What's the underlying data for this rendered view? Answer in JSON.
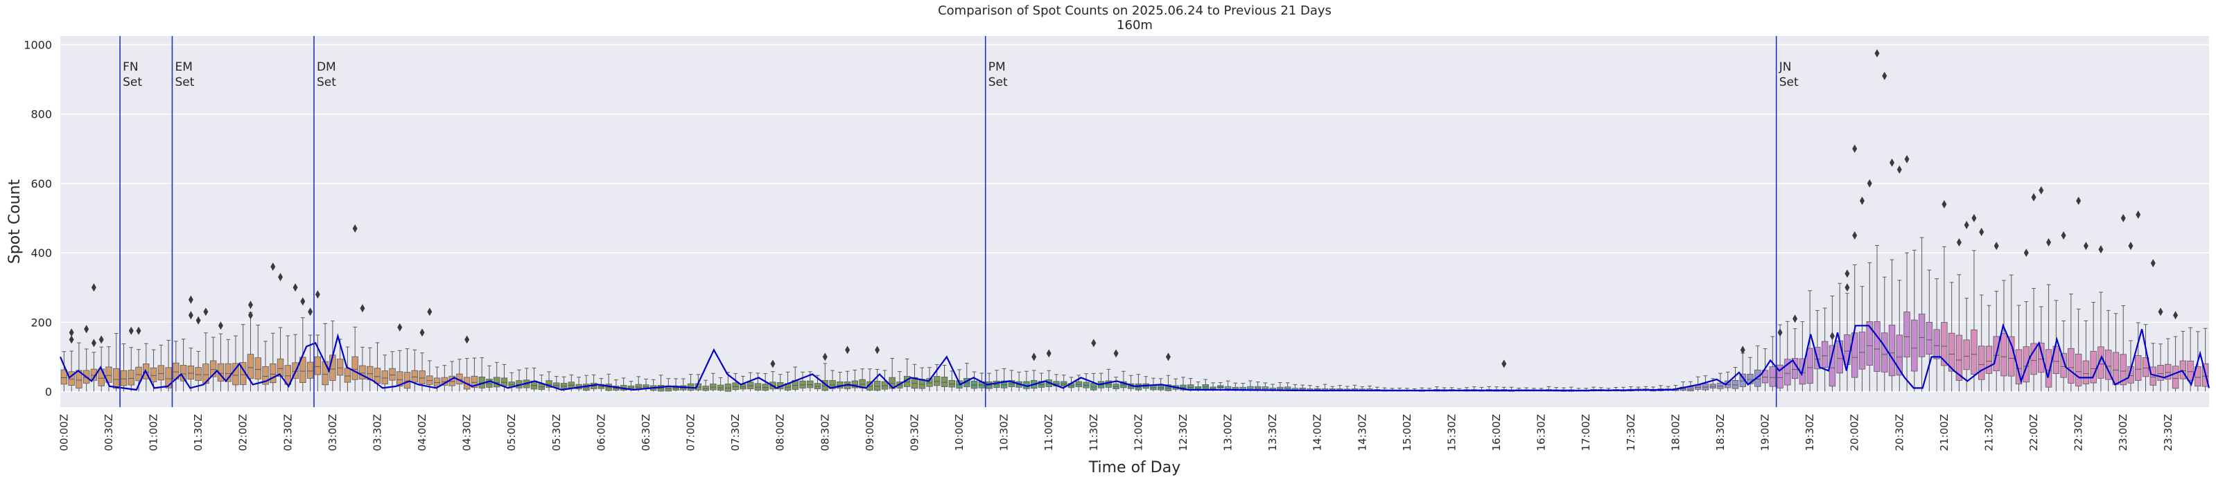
{
  "chart_data": {
    "type": "box",
    "title": "Comparison of Spot Counts on 2025.06.24 to Previous 21 Days",
    "subtitle": "160m",
    "xlabel": "Time of Day",
    "ylabel": "Spot Count",
    "ylim": [
      -45,
      1025
    ],
    "yticks": [
      0,
      200,
      400,
      600,
      800,
      1000
    ],
    "grid": true,
    "slots_per_day": 288,
    "slot_minutes": 5,
    "xtick_labels": [
      "00:00Z",
      "00:30Z",
      "01:00Z",
      "01:30Z",
      "02:00Z",
      "02:30Z",
      "03:00Z",
      "03:30Z",
      "04:00Z",
      "04:30Z",
      "05:00Z",
      "05:30Z",
      "06:00Z",
      "06:30Z",
      "07:00Z",
      "07:30Z",
      "08:00Z",
      "08:30Z",
      "09:00Z",
      "09:30Z",
      "10:00Z",
      "10:30Z",
      "11:00Z",
      "11:30Z",
      "12:00Z",
      "12:30Z",
      "13:00Z",
      "13:30Z",
      "14:00Z",
      "14:30Z",
      "15:00Z",
      "15:30Z",
      "16:00Z",
      "16:30Z",
      "17:00Z",
      "17:30Z",
      "18:00Z",
      "18:30Z",
      "19:00Z",
      "19:30Z",
      "20:00Z",
      "20:30Z",
      "21:00Z",
      "21:30Z",
      "22:00Z",
      "22:30Z",
      "23:00Z",
      "23:30Z"
    ],
    "annotations": [
      {
        "label": "FN\nSet",
        "time": "00:40Z"
      },
      {
        "label": "EM\nSet",
        "time": "01:15Z"
      },
      {
        "label": "DM\nSet",
        "time": "02:50Z"
      },
      {
        "label": "PM\nSet",
        "time": "10:20Z"
      },
      {
        "label": "JN\nSet",
        "time": "19:10Z"
      }
    ],
    "box_profile": {
      "time_hours": [
        0,
        0.5,
        1,
        2,
        2.5,
        3,
        3.5,
        4,
        5,
        6,
        7,
        8,
        9,
        10,
        10.5,
        11,
        12,
        13,
        14,
        15,
        16,
        17,
        18,
        18.5,
        19,
        19.5,
        20,
        20.5,
        21,
        21.5,
        22,
        22.5,
        23,
        23.5,
        24
      ],
      "median": [
        40,
        45,
        45,
        55,
        60,
        60,
        50,
        35,
        20,
        12,
        10,
        15,
        20,
        25,
        20,
        20,
        15,
        10,
        5,
        3,
        3,
        3,
        5,
        15,
        40,
        70,
        110,
        130,
        120,
        100,
        80,
        70,
        60,
        50,
        45
      ],
      "iqr": [
        40,
        45,
        45,
        55,
        60,
        60,
        50,
        35,
        20,
        15,
        15,
        20,
        25,
        25,
        20,
        18,
        15,
        10,
        6,
        4,
        4,
        4,
        6,
        18,
        45,
        80,
        120,
        140,
        110,
        100,
        90,
        80,
        70,
        60,
        50
      ]
    },
    "box_colors": [
      {
        "from": "00:00Z",
        "to": "04:40Z",
        "color": "#d09a6f"
      },
      {
        "from": "04:40Z",
        "to": "10:00Z",
        "color": "#7d9a5a"
      },
      {
        "from": "10:00Z",
        "to": "13:00Z",
        "color": "#5e9e73"
      },
      {
        "from": "13:00Z",
        "to": "16:30Z",
        "color": "#7aa9b6"
      },
      {
        "from": "16:30Z",
        "to": "19:00Z",
        "color": "#9a95c8"
      },
      {
        "from": "19:00Z",
        "to": "21:00Z",
        "color": "#c48bcf"
      },
      {
        "from": "21:00Z",
        "to": "24:00Z",
        "color": "#d78ebc"
      }
    ],
    "outliers": [
      {
        "time": "00:05Z",
        "value": 150
      },
      {
        "time": "00:05Z",
        "value": 170
      },
      {
        "time": "00:15Z",
        "value": 180
      },
      {
        "time": "00:20Z",
        "value": 300
      },
      {
        "time": "00:20Z",
        "value": 140
      },
      {
        "time": "00:25Z",
        "value": 150
      },
      {
        "time": "00:45Z",
        "value": 175
      },
      {
        "time": "00:50Z",
        "value": 175
      },
      {
        "time": "01:25Z",
        "value": 265
      },
      {
        "time": "01:25Z",
        "value": 220
      },
      {
        "time": "01:30Z",
        "value": 205
      },
      {
        "time": "01:35Z",
        "value": 230
      },
      {
        "time": "01:45Z",
        "value": 190
      },
      {
        "time": "02:05Z",
        "value": 250
      },
      {
        "time": "02:05Z",
        "value": 220
      },
      {
        "time": "02:20Z",
        "value": 360
      },
      {
        "time": "02:25Z",
        "value": 330
      },
      {
        "time": "02:35Z",
        "value": 300
      },
      {
        "time": "02:40Z",
        "value": 260
      },
      {
        "time": "02:45Z",
        "value": 230
      },
      {
        "time": "02:50Z",
        "value": 280
      },
      {
        "time": "03:15Z",
        "value": 470
      },
      {
        "time": "03:20Z",
        "value": 240
      },
      {
        "time": "03:45Z",
        "value": 185
      },
      {
        "time": "04:00Z",
        "value": 170
      },
      {
        "time": "04:05Z",
        "value": 230
      },
      {
        "time": "04:30Z",
        "value": 150
      },
      {
        "time": "07:55Z",
        "value": 80
      },
      {
        "time": "08:30Z",
        "value": 100
      },
      {
        "time": "08:45Z",
        "value": 120
      },
      {
        "time": "09:05Z",
        "value": 120
      },
      {
        "time": "10:50Z",
        "value": 100
      },
      {
        "time": "11:00Z",
        "value": 110
      },
      {
        "time": "11:30Z",
        "value": 140
      },
      {
        "time": "11:45Z",
        "value": 110
      },
      {
        "time": "12:20Z",
        "value": 100
      },
      {
        "time": "16:05Z",
        "value": 80
      },
      {
        "time": "18:45Z",
        "value": 120
      },
      {
        "time": "19:10Z",
        "value": 170
      },
      {
        "time": "19:20Z",
        "value": 210
      },
      {
        "time": "19:45Z",
        "value": 160
      },
      {
        "time": "19:55Z",
        "value": 300
      },
      {
        "time": "19:55Z",
        "value": 340
      },
      {
        "time": "20:00Z",
        "value": 450
      },
      {
        "time": "20:00Z",
        "value": 700
      },
      {
        "time": "20:05Z",
        "value": 550
      },
      {
        "time": "20:10Z",
        "value": 600
      },
      {
        "time": "20:15Z",
        "value": 975
      },
      {
        "time": "20:20Z",
        "value": 910
      },
      {
        "time": "20:25Z",
        "value": 660
      },
      {
        "time": "20:30Z",
        "value": 640
      },
      {
        "time": "20:35Z",
        "value": 670
      },
      {
        "time": "21:00Z",
        "value": 540
      },
      {
        "time": "21:10Z",
        "value": 430
      },
      {
        "time": "21:15Z",
        "value": 480
      },
      {
        "time": "21:20Z",
        "value": 500
      },
      {
        "time": "21:25Z",
        "value": 460
      },
      {
        "time": "21:35Z",
        "value": 420
      },
      {
        "time": "21:55Z",
        "value": 400
      },
      {
        "time": "22:00Z",
        "value": 560
      },
      {
        "time": "22:05Z",
        "value": 580
      },
      {
        "time": "22:10Z",
        "value": 430
      },
      {
        "time": "22:20Z",
        "value": 450
      },
      {
        "time": "22:30Z",
        "value": 550
      },
      {
        "time": "22:35Z",
        "value": 420
      },
      {
        "time": "22:45Z",
        "value": 410
      },
      {
        "time": "23:00Z",
        "value": 500
      },
      {
        "time": "23:05Z",
        "value": 420
      },
      {
        "time": "23:10Z",
        "value": 510
      },
      {
        "time": "23:20Z",
        "value": 370
      },
      {
        "time": "23:25Z",
        "value": 230
      },
      {
        "time": "23:35Z",
        "value": 220
      }
    ],
    "series": [
      {
        "color": "#0000cc",
        "points": [
          [
            0.0,
            100
          ],
          [
            0.1,
            40
          ],
          [
            0.2,
            60
          ],
          [
            0.35,
            30
          ],
          [
            0.45,
            70
          ],
          [
            0.55,
            15
          ],
          [
            0.7,
            10
          ],
          [
            0.85,
            5
          ],
          [
            0.95,
            60
          ],
          [
            1.05,
            10
          ],
          [
            1.2,
            15
          ],
          [
            1.35,
            50
          ],
          [
            1.45,
            10
          ],
          [
            1.6,
            20
          ],
          [
            1.75,
            60
          ],
          [
            1.85,
            30
          ],
          [
            2.0,
            80
          ],
          [
            2.15,
            20
          ],
          [
            2.3,
            30
          ],
          [
            2.45,
            50
          ],
          [
            2.55,
            15
          ],
          [
            2.65,
            70
          ],
          [
            2.75,
            130
          ],
          [
            2.85,
            140
          ],
          [
            3.0,
            60
          ],
          [
            3.1,
            160
          ],
          [
            3.2,
            70
          ],
          [
            3.35,
            50
          ],
          [
            3.5,
            30
          ],
          [
            3.6,
            10
          ],
          [
            3.75,
            15
          ],
          [
            3.9,
            30
          ],
          [
            4.0,
            20
          ],
          [
            4.2,
            10
          ],
          [
            4.4,
            40
          ],
          [
            4.6,
            15
          ],
          [
            4.8,
            30
          ],
          [
            5.0,
            10
          ],
          [
            5.3,
            30
          ],
          [
            5.6,
            5
          ],
          [
            6.0,
            20
          ],
          [
            6.4,
            5
          ],
          [
            6.8,
            15
          ],
          [
            7.1,
            10
          ],
          [
            7.3,
            120
          ],
          [
            7.45,
            50
          ],
          [
            7.6,
            20
          ],
          [
            7.8,
            40
          ],
          [
            8.0,
            10
          ],
          [
            8.2,
            30
          ],
          [
            8.4,
            50
          ],
          [
            8.6,
            10
          ],
          [
            8.8,
            20
          ],
          [
            9.0,
            10
          ],
          [
            9.15,
            50
          ],
          [
            9.3,
            10
          ],
          [
            9.5,
            40
          ],
          [
            9.7,
            30
          ],
          [
            9.9,
            100
          ],
          [
            10.05,
            20
          ],
          [
            10.2,
            40
          ],
          [
            10.35,
            20
          ],
          [
            10.6,
            30
          ],
          [
            10.8,
            15
          ],
          [
            11.0,
            30
          ],
          [
            11.2,
            10
          ],
          [
            11.4,
            40
          ],
          [
            11.6,
            20
          ],
          [
            11.8,
            30
          ],
          [
            12.0,
            15
          ],
          [
            12.3,
            20
          ],
          [
            12.6,
            5
          ],
          [
            13.0,
            5
          ],
          [
            14.0,
            3
          ],
          [
            15.0,
            3
          ],
          [
            16.0,
            3
          ],
          [
            17.0,
            3
          ],
          [
            18.0,
            5
          ],
          [
            18.3,
            20
          ],
          [
            18.5,
            35
          ],
          [
            18.6,
            20
          ],
          [
            18.75,
            55
          ],
          [
            18.85,
            20
          ],
          [
            19.0,
            50
          ],
          [
            19.1,
            90
          ],
          [
            19.2,
            60
          ],
          [
            19.35,
            90
          ],
          [
            19.45,
            50
          ],
          [
            19.55,
            165
          ],
          [
            19.65,
            70
          ],
          [
            19.75,
            60
          ],
          [
            19.85,
            170
          ],
          [
            19.95,
            60
          ],
          [
            20.05,
            190
          ],
          [
            20.2,
            190
          ],
          [
            20.35,
            140
          ],
          [
            20.5,
            80
          ],
          [
            20.6,
            40
          ],
          [
            20.7,
            10
          ],
          [
            20.8,
            10
          ],
          [
            20.9,
            100
          ],
          [
            21.0,
            100
          ],
          [
            21.15,
            60
          ],
          [
            21.3,
            30
          ],
          [
            21.45,
            60
          ],
          [
            21.6,
            80
          ],
          [
            21.7,
            190
          ],
          [
            21.8,
            130
          ],
          [
            21.9,
            30
          ],
          [
            22.0,
            100
          ],
          [
            22.1,
            140
          ],
          [
            22.2,
            40
          ],
          [
            22.3,
            150
          ],
          [
            22.4,
            70
          ],
          [
            22.55,
            40
          ],
          [
            22.7,
            40
          ],
          [
            22.8,
            100
          ],
          [
            22.95,
            20
          ],
          [
            23.1,
            40
          ],
          [
            23.25,
            180
          ],
          [
            23.35,
            50
          ],
          [
            23.5,
            40
          ],
          [
            23.7,
            60
          ],
          [
            23.8,
            20
          ],
          [
            23.9,
            110
          ],
          [
            24.0,
            10
          ]
        ]
      }
    ]
  }
}
